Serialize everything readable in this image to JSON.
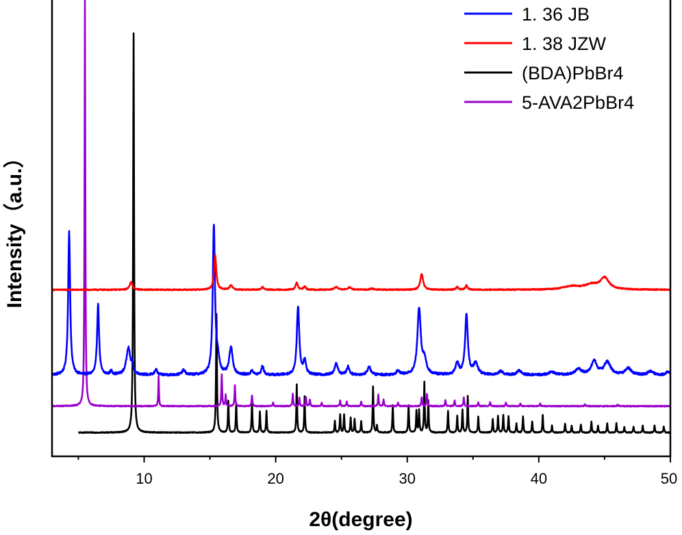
{
  "chart_data": {
    "type": "line",
    "xlabel": "2θ(degree)",
    "ylabel": "Intensity（a.u.）",
    "xlim": [
      3,
      50
    ],
    "ylim": [
      0,
      100
    ],
    "x_ticks": [
      10,
      20,
      30,
      40,
      50
    ],
    "x_tick_labels": [
      "10",
      "20",
      "30",
      "40",
      "50"
    ],
    "y_ticks_shown": false,
    "grid": false,
    "legend_position": "top-right",
    "x_range": [
      3,
      50
    ],
    "series": [
      {
        "name": "1.  36 JB",
        "color": "#0000ff",
        "baseline": 17.8,
        "noise": 0.25,
        "peaks": [
          [
            4.3,
            31.5,
            0.18
          ],
          [
            6.5,
            15.5,
            0.18
          ],
          [
            7.5,
            0.8,
            0.2
          ],
          [
            8.8,
            6.0,
            0.35
          ],
          [
            9.1,
            2.0,
            0.15
          ],
          [
            10.9,
            1.3,
            0.2
          ],
          [
            13.0,
            1.0,
            0.3
          ],
          [
            15.3,
            32.5,
            0.2
          ],
          [
            15.6,
            3.0,
            0.3
          ],
          [
            16.6,
            6.0,
            0.3
          ],
          [
            18.2,
            1.0,
            0.2
          ],
          [
            19.0,
            2.0,
            0.2
          ],
          [
            21.7,
            15.0,
            0.22
          ],
          [
            22.2,
            3.0,
            0.25
          ],
          [
            24.6,
            2.5,
            0.3
          ],
          [
            25.5,
            1.8,
            0.25
          ],
          [
            27.1,
            1.8,
            0.3
          ],
          [
            29.3,
            0.9,
            0.3
          ],
          [
            30.9,
            14.5,
            0.3
          ],
          [
            31.3,
            3.0,
            0.35
          ],
          [
            33.8,
            2.5,
            0.3
          ],
          [
            34.5,
            13.0,
            0.25
          ],
          [
            35.2,
            2.5,
            0.4
          ],
          [
            37.1,
            0.8,
            0.4
          ],
          [
            38.5,
            0.9,
            0.4
          ],
          [
            41.0,
            0.6,
            0.6
          ],
          [
            43.0,
            1.2,
            0.6
          ],
          [
            44.2,
            3.0,
            0.5
          ],
          [
            45.2,
            2.8,
            0.6
          ],
          [
            46.8,
            1.5,
            0.5
          ],
          [
            48.5,
            0.8,
            0.5
          ],
          [
            49.8,
            0.7,
            0.3
          ]
        ]
      },
      {
        "name": "1.  38 JZW",
        "color": "#ff0000",
        "baseline": 36.5,
        "noise": 0.12,
        "peaks": [
          [
            9.0,
            1.7,
            0.25
          ],
          [
            15.4,
            7.5,
            0.2
          ],
          [
            16.6,
            1.0,
            0.25
          ],
          [
            19.0,
            0.6,
            0.2
          ],
          [
            21.6,
            1.5,
            0.2
          ],
          [
            22.2,
            0.7,
            0.2
          ],
          [
            24.6,
            0.6,
            0.3
          ],
          [
            25.6,
            0.5,
            0.3
          ],
          [
            27.3,
            0.3,
            0.3
          ],
          [
            31.1,
            3.5,
            0.25
          ],
          [
            33.8,
            0.6,
            0.2
          ],
          [
            34.5,
            0.9,
            0.2
          ],
          [
            42.5,
            0.7,
            1.5
          ],
          [
            45.0,
            2.5,
            0.8
          ],
          [
            44.0,
            1.0,
            1.2
          ]
        ]
      },
      {
        "name": "(BDA)PbBr4",
        "color": "#000000",
        "baseline": 5.2,
        "noise": 0.1,
        "x_start": 5.0,
        "peaks": [
          [
            9.2,
            87.5,
            0.08
          ],
          [
            15.5,
            26.0,
            0.08
          ],
          [
            16.4,
            7.0,
            0.07
          ],
          [
            17.0,
            6.5,
            0.07
          ],
          [
            18.2,
            6.8,
            0.07
          ],
          [
            18.8,
            4.5,
            0.07
          ],
          [
            19.3,
            4.8,
            0.07
          ],
          [
            21.6,
            10.6,
            0.07
          ],
          [
            22.2,
            8.0,
            0.07
          ],
          [
            24.5,
            2.5,
            0.07
          ],
          [
            24.9,
            4.0,
            0.07
          ],
          [
            25.2,
            4.0,
            0.07
          ],
          [
            25.7,
            3.2,
            0.07
          ],
          [
            26.0,
            3.0,
            0.07
          ],
          [
            26.5,
            2.5,
            0.07
          ],
          [
            27.4,
            10.0,
            0.07
          ],
          [
            27.7,
            1.5,
            0.07
          ],
          [
            28.9,
            6.0,
            0.07
          ],
          [
            30.1,
            6.0,
            0.07
          ],
          [
            30.7,
            4.8,
            0.07
          ],
          [
            30.9,
            4.8,
            0.07
          ],
          [
            31.3,
            11.0,
            0.07
          ],
          [
            31.6,
            7.0,
            0.07
          ],
          [
            33.1,
            4.8,
            0.07
          ],
          [
            33.8,
            3.6,
            0.07
          ],
          [
            34.2,
            5.0,
            0.07
          ],
          [
            34.6,
            8.0,
            0.07
          ],
          [
            35.4,
            3.5,
            0.07
          ],
          [
            36.5,
            3.0,
            0.07
          ],
          [
            36.9,
            3.6,
            0.07
          ],
          [
            37.3,
            3.8,
            0.07
          ],
          [
            37.7,
            3.6,
            0.07
          ],
          [
            38.3,
            2.0,
            0.07
          ],
          [
            38.8,
            3.6,
            0.07
          ],
          [
            39.5,
            2.5,
            0.07
          ],
          [
            40.3,
            3.8,
            0.07
          ],
          [
            41.0,
            1.5,
            0.07
          ],
          [
            42.0,
            2.0,
            0.07
          ],
          [
            42.5,
            1.5,
            0.07
          ],
          [
            43.2,
            1.8,
            0.07
          ],
          [
            44.0,
            2.5,
            0.07
          ],
          [
            44.5,
            1.5,
            0.07
          ],
          [
            45.2,
            2.0,
            0.07
          ],
          [
            45.9,
            2.0,
            0.07
          ],
          [
            46.5,
            1.2,
            0.07
          ],
          [
            47.2,
            1.3,
            0.07
          ],
          [
            47.9,
            1.5,
            0.07
          ],
          [
            48.8,
            1.6,
            0.07
          ],
          [
            49.5,
            1.4,
            0.07
          ]
        ]
      },
      {
        "name": "5-AVA2PbBr4",
        "color": "#9900cc",
        "baseline": 11.0,
        "noise": 0.1,
        "peaks": [
          [
            5.5,
            89.0,
            0.07
          ],
          [
            11.1,
            6.5,
            0.06
          ],
          [
            15.9,
            7.0,
            0.07
          ],
          [
            16.2,
            2.5,
            0.06
          ],
          [
            16.9,
            4.5,
            0.07
          ],
          [
            18.2,
            2.4,
            0.07
          ],
          [
            19.8,
            0.8,
            0.07
          ],
          [
            21.3,
            2.7,
            0.07
          ],
          [
            21.8,
            1.8,
            0.07
          ],
          [
            22.3,
            2.0,
            0.07
          ],
          [
            22.6,
            1.5,
            0.07
          ],
          [
            23.5,
            0.8,
            0.07
          ],
          [
            24.9,
            1.2,
            0.07
          ],
          [
            25.4,
            1.0,
            0.07
          ],
          [
            26.5,
            1.0,
            0.07
          ],
          [
            27.8,
            2.5,
            0.07
          ],
          [
            28.2,
            1.5,
            0.07
          ],
          [
            29.3,
            0.8,
            0.07
          ],
          [
            31.1,
            2.0,
            0.07
          ],
          [
            31.5,
            2.6,
            0.07
          ],
          [
            32.9,
            1.3,
            0.07
          ],
          [
            33.6,
            1.2,
            0.07
          ],
          [
            34.3,
            2.0,
            0.07
          ],
          [
            35.4,
            0.8,
            0.07
          ],
          [
            36.3,
            0.8,
            0.07
          ],
          [
            37.5,
            0.8,
            0.07
          ],
          [
            38.6,
            0.6,
            0.07
          ],
          [
            40.1,
            0.6,
            0.07
          ],
          [
            43.5,
            0.5,
            0.07
          ],
          [
            46.0,
            0.4,
            0.07
          ]
        ]
      }
    ]
  }
}
